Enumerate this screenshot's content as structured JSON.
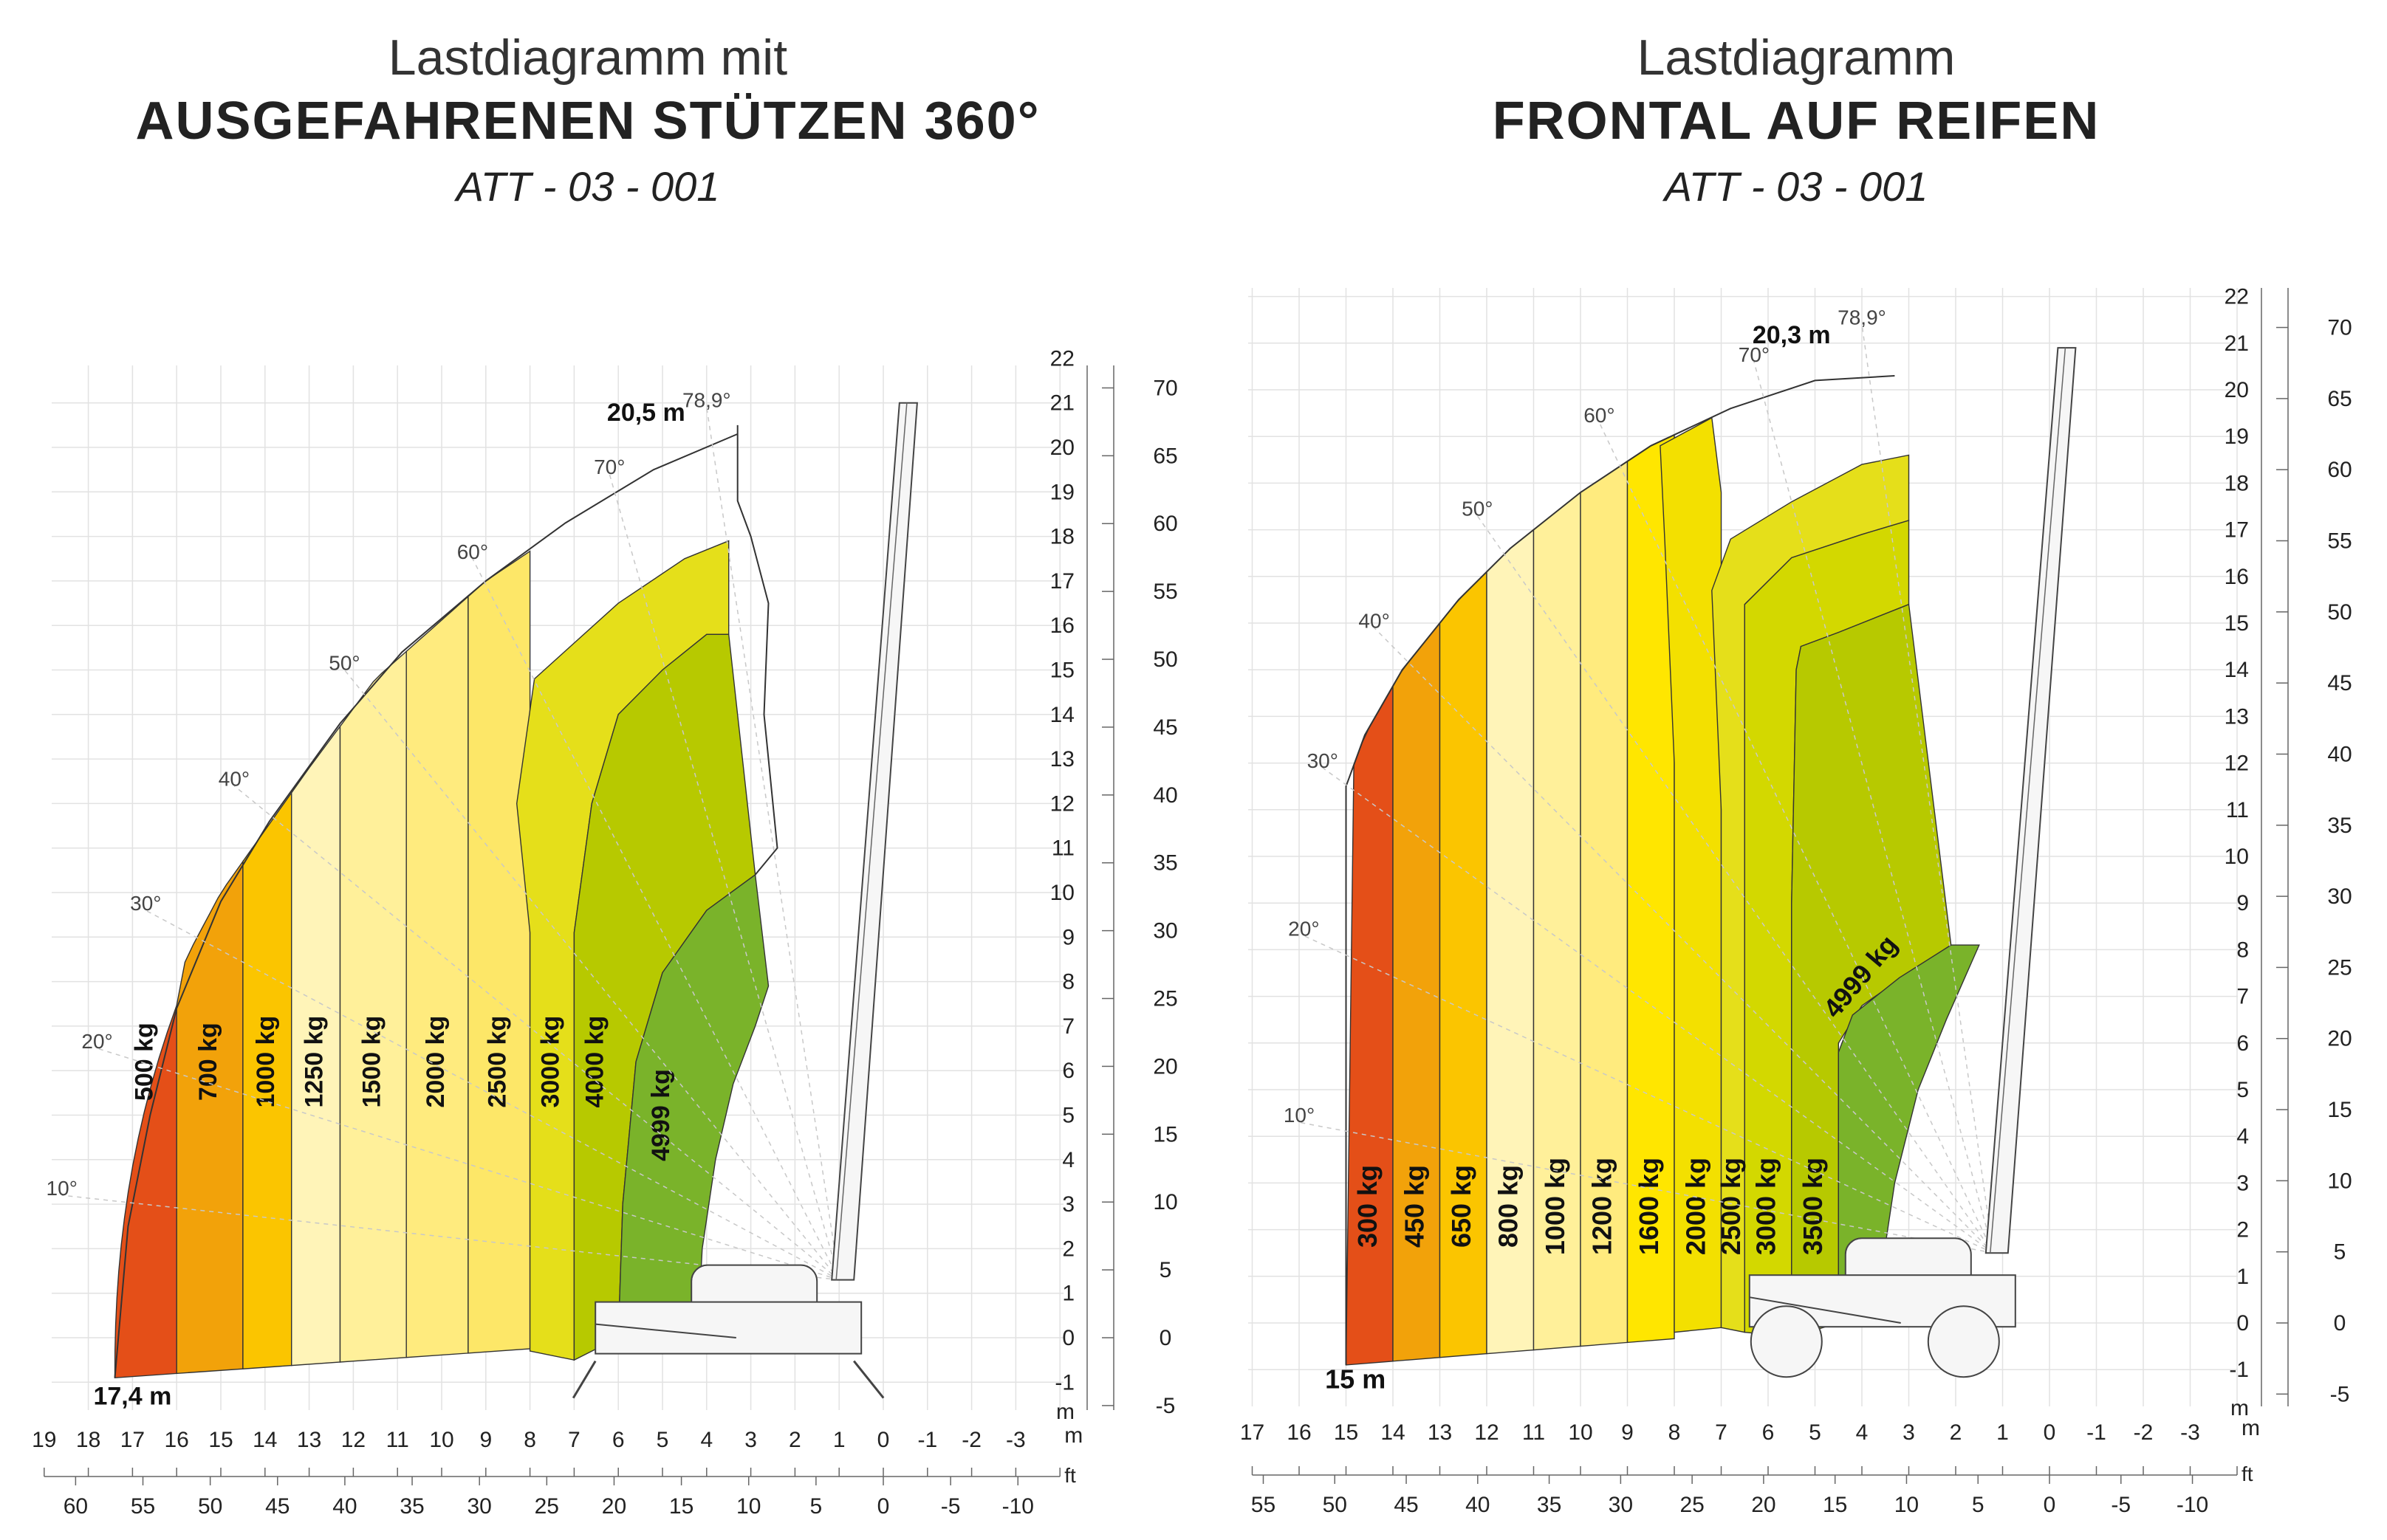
{
  "chart_data": [
    {
      "type": "area",
      "title_light": "Lastdiagramm mit",
      "title_bold": "AUSGEFAHRENEN STÜTZEN 360°",
      "code": "ATT - 03 - 001",
      "x_unit": "m",
      "x_unit_ft": "ft",
      "y_unit": "m",
      "xlim": [
        -4,
        19
      ],
      "ylim": [
        -2,
        22
      ],
      "x_ticks_m": [
        19,
        18,
        17,
        16,
        15,
        14,
        13,
        12,
        11,
        10,
        9,
        8,
        7,
        6,
        5,
        4,
        3,
        2,
        1,
        0,
        -1,
        -2,
        -3
      ],
      "x_ticks_ft": [
        60,
        55,
        50,
        45,
        40,
        35,
        30,
        25,
        20,
        15,
        10,
        5,
        0,
        -5,
        -10
      ],
      "y_ticks_m": [
        22,
        21,
        20,
        19,
        18,
        17,
        16,
        15,
        14,
        13,
        12,
        11,
        10,
        9,
        8,
        7,
        6,
        5,
        4,
        3,
        2,
        1,
        0,
        -1
      ],
      "y_ticks_ft": [
        70,
        65,
        60,
        55,
        50,
        45,
        40,
        35,
        30,
        25,
        20,
        15,
        10,
        5,
        0,
        -5
      ],
      "angles": [
        "10°",
        "20°",
        "30°",
        "40°",
        "50°",
        "60°",
        "70°",
        "78,9°"
      ],
      "max_height_label": "20,5 m",
      "max_reach_label": "17,4 m",
      "outer_boundary": [
        [
          17.4,
          -0.9
        ],
        [
          17.2,
          1.5
        ],
        [
          16.8,
          3.8
        ],
        [
          16.4,
          5.4
        ],
        [
          15.8,
          8.5
        ],
        [
          15.0,
          10.0
        ],
        [
          13.0,
          12.8
        ],
        [
          11.5,
          14.8
        ],
        [
          9.0,
          17.0
        ],
        [
          6.0,
          19.0
        ],
        [
          3.5,
          20.2
        ],
        [
          3.3,
          20.5
        ]
      ],
      "zone_boundaries_x": [
        16.0,
        14.5,
        13.4,
        12.3,
        10.8,
        9.4,
        8.0,
        7.0,
        6.0
      ],
      "zones": [
        {
          "label": "500 kg",
          "x_range": [
            16.0,
            17.4
          ],
          "color": "#e44f18"
        },
        {
          "label": "700 kg",
          "x_range": [
            14.5,
            16.0
          ],
          "color": "#f2a20a"
        },
        {
          "label": "1000 kg",
          "x_range": [
            13.4,
            14.5
          ],
          "color": "#fbc500"
        },
        {
          "label": "1250 kg",
          "x_range": [
            12.3,
            13.4
          ],
          "color": "#fff4b8"
        },
        {
          "label": "1500 kg",
          "x_range": [
            10.8,
            12.3
          ],
          "color": "#fff09a"
        },
        {
          "label": "2000 kg",
          "x_range": [
            9.4,
            10.8
          ],
          "color": "#ffeb7e"
        },
        {
          "label": "2500 kg",
          "x_range": [
            8.0,
            9.4
          ],
          "color": "#fde768"
        },
        {
          "label": "3000 kg",
          "x_range": [
            7.0,
            8.0
          ],
          "color": "#e5df1a"
        },
        {
          "label": "4000 kg",
          "x_range": [
            6.0,
            7.0
          ],
          "color": "#b7c900"
        },
        {
          "label": "4999 kg",
          "x_range": [
            4.0,
            6.0
          ],
          "color": "#7ab32a"
        }
      ]
    },
    {
      "type": "area",
      "title_light": "Lastdiagramm",
      "title_bold": "FRONTAL AUF REIFEN",
      "code": "ATT - 03 - 001",
      "x_unit": "m",
      "x_unit_ft": "ft",
      "y_unit": "m",
      "xlim": [
        -4,
        17
      ],
      "ylim": [
        -2,
        22
      ],
      "x_ticks_m": [
        17,
        16,
        15,
        14,
        13,
        12,
        11,
        10,
        9,
        8,
        7,
        6,
        5,
        4,
        3,
        2,
        1,
        0,
        -1,
        -2,
        -3
      ],
      "x_ticks_ft": [
        55,
        50,
        45,
        40,
        35,
        30,
        25,
        20,
        15,
        10,
        5,
        0,
        -5,
        -10
      ],
      "y_ticks_m": [
        22,
        21,
        20,
        19,
        18,
        17,
        16,
        15,
        14,
        13,
        12,
        11,
        10,
        9,
        8,
        7,
        6,
        5,
        4,
        3,
        2,
        1,
        0,
        -1
      ],
      "y_ticks_ft": [
        70,
        65,
        60,
        55,
        50,
        45,
        40,
        35,
        30,
        25,
        20,
        15,
        10,
        5,
        0,
        -5
      ],
      "angles": [
        "10°",
        "20°",
        "30°",
        "40°",
        "50°",
        "60°",
        "70°",
        "78,9°"
      ],
      "max_height_label": "20,3 m",
      "max_reach_label": "15 m",
      "zones": [
        {
          "label": "300 kg",
          "x_range": [
            14.0,
            15.0
          ],
          "color": "#e44f18"
        },
        {
          "label": "450 kg",
          "x_range": [
            13.0,
            14.0
          ],
          "color": "#f2a20a"
        },
        {
          "label": "650 kg",
          "x_range": [
            12.0,
            13.0
          ],
          "color": "#fbc500"
        },
        {
          "label": "800 kg",
          "x_range": [
            11.0,
            12.0
          ],
          "color": "#fff4b8"
        },
        {
          "label": "1000 kg",
          "x_range": [
            10.0,
            11.0
          ],
          "color": "#fff09a"
        },
        {
          "label": "1200 kg",
          "x_range": [
            9.0,
            10.0
          ],
          "color": "#ffeb7e"
        },
        {
          "label": "1600 kg",
          "x_range": [
            8.0,
            9.0
          ],
          "color": "#ffe600"
        },
        {
          "label": "2000 kg",
          "x_range": [
            7.0,
            8.0
          ],
          "color": "#f3e000"
        },
        {
          "label": "2500 kg",
          "x_range": [
            6.5,
            7.0
          ],
          "color": "#e5df1a"
        },
        {
          "label": "3000 kg",
          "x_range": [
            5.5,
            6.5
          ],
          "color": "#d3d800"
        },
        {
          "label": "3500 kg",
          "x_range": [
            4.5,
            5.5
          ],
          "color": "#b7c900"
        },
        {
          "label": "4999 kg",
          "x_range": [
            3.5,
            4.5
          ],
          "color": "#7ab32a"
        }
      ]
    }
  ]
}
